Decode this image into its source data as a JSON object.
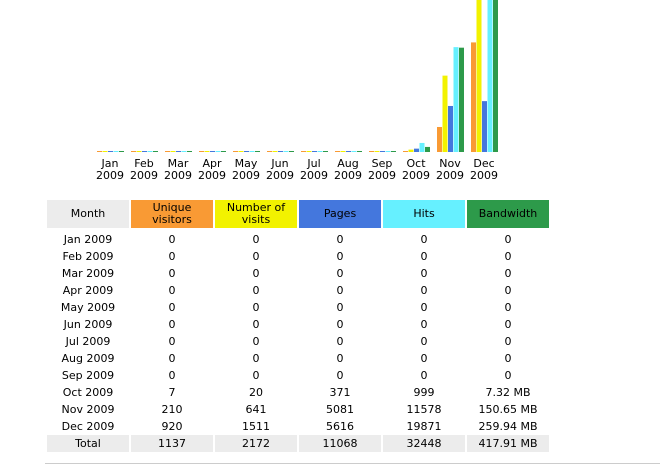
{
  "chart_data": {
    "type": "bar",
    "title": "",
    "categories": [
      "Jan 2009",
      "Feb 2009",
      "Mar 2009",
      "Apr 2009",
      "May 2009",
      "Jun 2009",
      "Jul 2009",
      "Aug 2009",
      "Sep 2009",
      "Oct 2009",
      "Nov 2009",
      "Dec 2009"
    ],
    "labels": [
      [
        "Jan",
        "2009"
      ],
      [
        "Feb",
        "2009"
      ],
      [
        "Mar",
        "2009"
      ],
      [
        "Apr",
        "2009"
      ],
      [
        "May",
        "2009"
      ],
      [
        "Jun",
        "2009"
      ],
      [
        "Jul",
        "2009"
      ],
      [
        "Aug",
        "2009"
      ],
      [
        "Sep",
        "2009"
      ],
      [
        "Oct",
        "2009"
      ],
      [
        "Nov",
        "2009"
      ],
      [
        "Dec",
        "2009"
      ]
    ],
    "series": [
      {
        "name": "Unique visitors",
        "color": "#f99a34",
        "values": [
          0,
          0,
          0,
          0,
          0,
          0,
          0,
          0,
          0,
          7,
          210,
          920
        ]
      },
      {
        "name": "Number of visits",
        "color": "#f2f200",
        "values": [
          0,
          0,
          0,
          0,
          0,
          0,
          0,
          0,
          0,
          20,
          641,
          1511
        ]
      },
      {
        "name": "Pages",
        "color": "#4477dd",
        "values": [
          0,
          0,
          0,
          0,
          0,
          0,
          0,
          0,
          0,
          371,
          5081,
          5616
        ]
      },
      {
        "name": "Hits",
        "color": "#66f0ff",
        "values": [
          0,
          0,
          0,
          0,
          0,
          0,
          0,
          0,
          0,
          999,
          11578,
          19871
        ]
      },
      {
        "name": "Bandwidth",
        "color": "#2d9a4a",
        "values": [
          0,
          0,
          0,
          0,
          0,
          0,
          0,
          0,
          0,
          7.32,
          150.65,
          259.94
        ]
      }
    ]
  },
  "table": {
    "headers": [
      "Month",
      "Unique visitors",
      "Number of visits",
      "Pages",
      "Hits",
      "Bandwidth"
    ],
    "rows": [
      [
        "Jan 2009",
        "0",
        "0",
        "0",
        "0",
        "0"
      ],
      [
        "Feb 2009",
        "0",
        "0",
        "0",
        "0",
        "0"
      ],
      [
        "Mar 2009",
        "0",
        "0",
        "0",
        "0",
        "0"
      ],
      [
        "Apr 2009",
        "0",
        "0",
        "0",
        "0",
        "0"
      ],
      [
        "May 2009",
        "0",
        "0",
        "0",
        "0",
        "0"
      ],
      [
        "Jun 2009",
        "0",
        "0",
        "0",
        "0",
        "0"
      ],
      [
        "Jul 2009",
        "0",
        "0",
        "0",
        "0",
        "0"
      ],
      [
        "Aug 2009",
        "0",
        "0",
        "0",
        "0",
        "0"
      ],
      [
        "Sep 2009",
        "0",
        "0",
        "0",
        "0",
        "0"
      ],
      [
        "Oct 2009",
        "7",
        "20",
        "371",
        "999",
        "7.32 MB"
      ],
      [
        "Nov 2009",
        "210",
        "641",
        "5081",
        "11578",
        "150.65 MB"
      ],
      [
        "Dec 2009",
        "920",
        "1511",
        "5616",
        "19871",
        "259.94 MB"
      ]
    ],
    "total": [
      "Total",
      "1137",
      "2172",
      "11068",
      "32448",
      "417.91 MB"
    ]
  }
}
